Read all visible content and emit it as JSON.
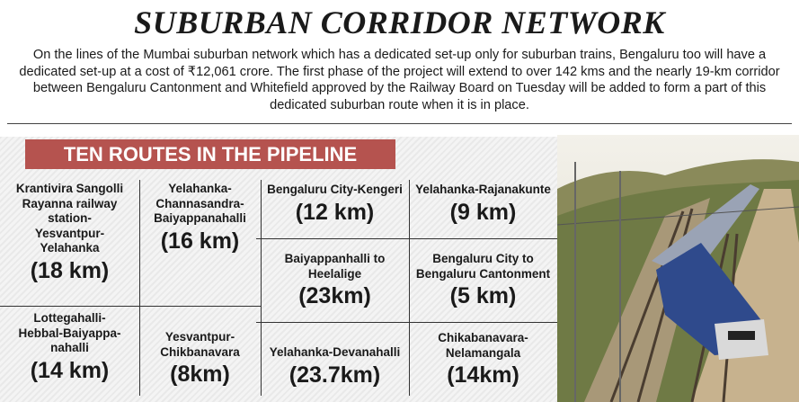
{
  "header": {
    "title": "SUBURBAN CORRIDOR NETWORK",
    "intro": "On the lines of the Mumbai suburban network which has a dedicated set-up only for suburban trains, Bengaluru too will have a dedicated set-up at a cost of ₹12,061 crore. The first phase of the project will extend to over 142 kms and the nearly 19-km corridor between Bengaluru Cantonment and Whitefield approved by the Railway Board on Tuesday will be added to form a part of this dedicated suburban route when it is in place."
  },
  "section": {
    "heading": "TEN ROUTES IN THE PIPELINE",
    "routes": [
      {
        "name_lines": [
          "Krantivira Sangolli",
          "Rayanna railway",
          "station-",
          "Yesvantpur-",
          "Yelahanka"
        ],
        "length": "(18 km)"
      },
      {
        "name_lines": [
          "Yelahanka-",
          "Channasandra-",
          "Baiyappanahalli"
        ],
        "length": "(16 km)"
      },
      {
        "name_lines": [
          "Bengaluru City-Kengeri"
        ],
        "length": "(12 km)"
      },
      {
        "name_lines": [
          "Yelahanka-Rajanakunte"
        ],
        "length": "(9 km)"
      },
      {
        "name_lines": [
          "Baiyappanhalli to",
          "Heelalige"
        ],
        "length": "(23km)"
      },
      {
        "name_lines": [
          "Bengaluru City to",
          "Bengaluru Cantonment"
        ],
        "length": "(5 km)"
      },
      {
        "name_lines": [
          "Lottegahalli-",
          "Hebbal-Baiyappa-",
          "nahalli"
        ],
        "length": "(14 km)"
      },
      {
        "name_lines": [
          "Yesvantpur-",
          "Chikbanavara"
        ],
        "length": "(8km)"
      },
      {
        "name_lines": [
          "Yelahanka-Devanahalli"
        ],
        "length": "(23.7km)"
      },
      {
        "name_lines": [
          "Chikabanavara-",
          "Nelamangala"
        ],
        "length": "(14km)"
      }
    ]
  }
}
